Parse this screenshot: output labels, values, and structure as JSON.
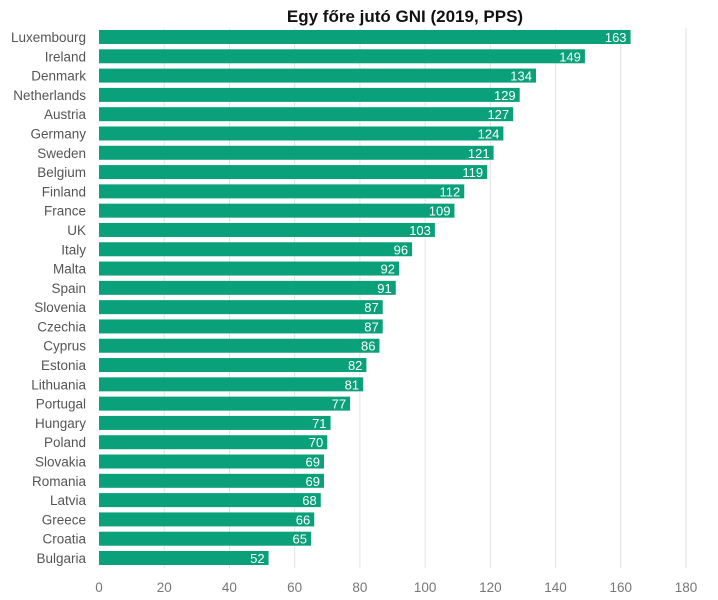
{
  "chart_data": {
    "type": "bar",
    "orientation": "horizontal",
    "title": "Egy főre jutó GNI (2019, PPS)",
    "xlabel": "",
    "ylabel": "",
    "xlim": [
      0,
      180
    ],
    "ticks": [
      0,
      20,
      40,
      60,
      80,
      100,
      120,
      140,
      160,
      180
    ],
    "grid": true,
    "bar_color": "#0aa07a",
    "categories": [
      "Luxembourg",
      "Ireland",
      "Denmark",
      "Netherlands",
      "Austria",
      "Germany",
      "Sweden",
      "Belgium",
      "Finland",
      "France",
      "UK",
      "Italy",
      "Malta",
      "Spain",
      "Slovenia",
      "Czechia",
      "Cyprus",
      "Estonia",
      "Lithuania",
      "Portugal",
      "Hungary",
      "Poland",
      "Slovakia",
      "Romania",
      "Latvia",
      "Greece",
      "Croatia",
      "Bulgaria"
    ],
    "values": [
      163,
      149,
      134,
      129,
      127,
      124,
      121,
      119,
      112,
      109,
      103,
      96,
      92,
      91,
      87,
      87,
      86,
      82,
      81,
      77,
      71,
      70,
      69,
      69,
      68,
      66,
      65,
      52
    ]
  }
}
